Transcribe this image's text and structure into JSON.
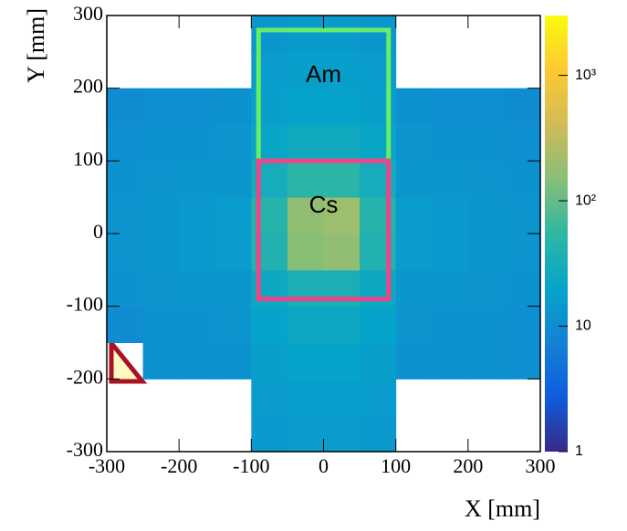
{
  "chart_data": {
    "type": "heatmap",
    "xlabel": "X [mm]",
    "ylabel": "Y [mm]",
    "xlim": [
      -300,
      300
    ],
    "ylim": [
      -300,
      300
    ],
    "xticks": [
      -300,
      -200,
      -100,
      0,
      100,
      200,
      300
    ],
    "yticks": [
      -300,
      -200,
      -100,
      0,
      100,
      200,
      300
    ],
    "x_bins": [
      -300,
      -250,
      -200,
      -150,
      -100,
      -50,
      0,
      50,
      100,
      150,
      200,
      250,
      300
    ],
    "y_bins": [
      -300,
      -250,
      -200,
      -150,
      -100,
      -50,
      0,
      50,
      100,
      150,
      200,
      250,
      300
    ],
    "z": [
      [
        null,
        null,
        null,
        null,
        15,
        16,
        16,
        15,
        null,
        null,
        null,
        null
      ],
      [
        null,
        null,
        null,
        null,
        16,
        17,
        17,
        16,
        null,
        null,
        null,
        null
      ],
      [
        null,
        12,
        12,
        12,
        18,
        20,
        20,
        18,
        12,
        12,
        12,
        11
      ],
      [
        10,
        12,
        12,
        13,
        20,
        24,
        24,
        20,
        13,
        12,
        12,
        11
      ],
      [
        12,
        13,
        14,
        14,
        25,
        35,
        35,
        25,
        14,
        14,
        13,
        12
      ],
      [
        13,
        14,
        15,
        16,
        40,
        150,
        170,
        40,
        16,
        15,
        14,
        13
      ],
      [
        13,
        14,
        15,
        16,
        45,
        170,
        200,
        45,
        16,
        15,
        14,
        13
      ],
      [
        12,
        13,
        14,
        14,
        30,
        50,
        50,
        30,
        14,
        14,
        13,
        12
      ],
      [
        11,
        12,
        12,
        13,
        22,
        26,
        26,
        22,
        13,
        12,
        12,
        11
      ],
      [
        10,
        11,
        11,
        12,
        18,
        20,
        20,
        18,
        12,
        11,
        11,
        10
      ],
      [
        null,
        null,
        null,
        null,
        16,
        18,
        18,
        16,
        null,
        null,
        null,
        null
      ],
      [
        null,
        null,
        null,
        null,
        14,
        15,
        15,
        14,
        null,
        null,
        null,
        null
      ]
    ],
    "zlim": [
      1,
      3000
    ],
    "zlog": true,
    "zticks": [
      1,
      10,
      {
        "value": 100,
        "label": "10²"
      },
      {
        "value": 1000,
        "label": "10³"
      }
    ],
    "colormap": [
      "#352a87",
      "#0f5cdd",
      "#1481d6",
      "#06a4ca",
      "#2eb7a4",
      "#87bf77",
      "#d1bb59",
      "#fec832",
      "#f9fb0e"
    ],
    "regions": [
      {
        "label": "Am",
        "color": "#66ee66",
        "x": [
          -90,
          90
        ],
        "y": [
          100,
          280
        ]
      },
      {
        "label": "Cs",
        "color": "#ee4488",
        "x": [
          -90,
          90
        ],
        "y": [
          -90,
          100
        ]
      }
    ]
  }
}
